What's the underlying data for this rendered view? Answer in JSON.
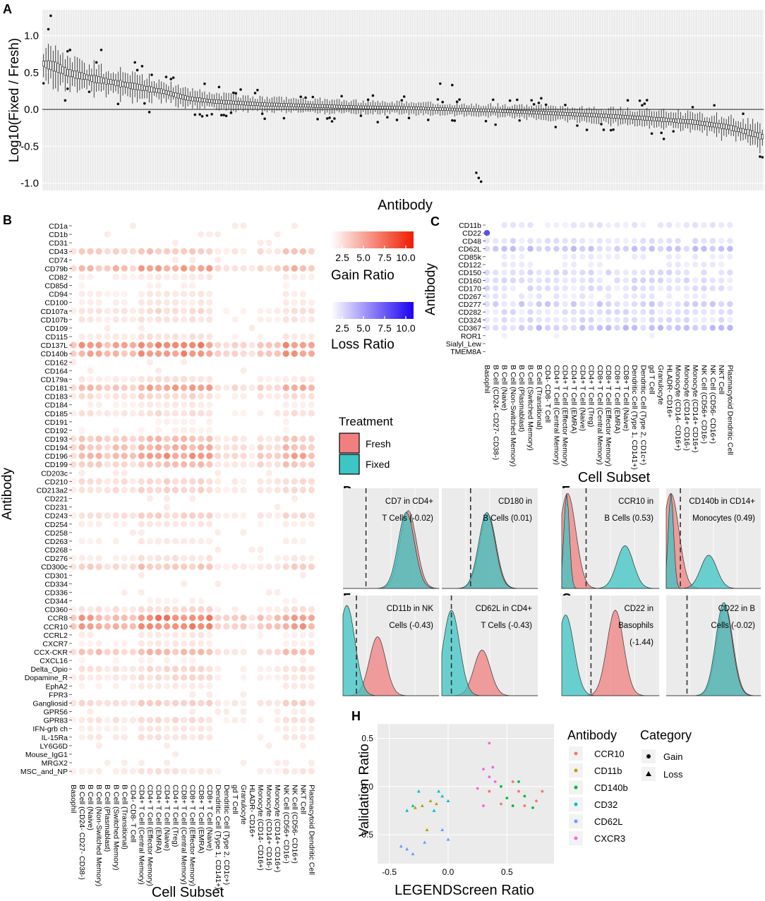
{
  "colors": {
    "panel_bg": "#ebebeb",
    "gain": "#ee5a3a",
    "loss": "#5b4ef0",
    "fresh": "#f08080",
    "fixed": "#3cc6c4",
    "ccr10": "#f8766d",
    "cd11b": "#b79f00",
    "cd140b": "#00ba38",
    "cd32": "#00bfc4",
    "cd62l": "#619cff",
    "cxcr3": "#f564e3"
  },
  "panel_labels": {
    "a": "A",
    "b": "B",
    "c": "C",
    "d": "D",
    "e": "E",
    "f": "F",
    "g": "G",
    "h": "H"
  },
  "chart_data": [
    {
      "panel": "A",
      "type": "box",
      "ylabel": "Log10(Fixed / Fresh)",
      "xlabel": "Antibody",
      "yticks": [
        "1.0",
        "0.5",
        "0.0",
        "-0.5",
        "-1.0"
      ],
      "ylim": [
        -1.1,
        1.35
      ],
      "n_boxes": 300,
      "median_trend": [
        [
          0,
          0.62
        ],
        [
          5,
          0.58
        ],
        [
          10,
          0.5
        ],
        [
          20,
          0.42
        ],
        [
          30,
          0.36
        ],
        [
          40,
          0.3
        ],
        [
          50,
          0.24
        ],
        [
          60,
          0.15
        ],
        [
          70,
          0.11
        ],
        [
          80,
          0.09
        ],
        [
          90,
          0.07
        ],
        [
          110,
          0.05
        ],
        [
          130,
          0.03
        ],
        [
          150,
          0.02
        ],
        [
          170,
          0.0
        ],
        [
          190,
          -0.02
        ],
        [
          210,
          -0.05
        ],
        [
          230,
          -0.08
        ],
        [
          250,
          -0.12
        ],
        [
          270,
          -0.17
        ],
        [
          285,
          -0.24
        ],
        [
          295,
          -0.33
        ],
        [
          299,
          -0.37
        ]
      ]
    },
    {
      "panel": "B",
      "type": "heatmap",
      "ylabel": "Antibody",
      "xlabel": "Cell Subset",
      "legend_gain_title": "Gain Ratio",
      "legend_loss_title": "Loss Ratio",
      "legend_ticks": [
        "2.5",
        "5.0",
        "7.5",
        "10.0"
      ],
      "rows": [
        "CD1a",
        "CD1b",
        "CD31",
        "CD43",
        "CD74",
        "CD79b",
        "CD82",
        "CD85d",
        "CD94",
        "CD100",
        "CD107a",
        "CD107b",
        "CD109",
        "CD115",
        "CD137L",
        "CD140b",
        "CD162",
        "CD164",
        "CD179a",
        "CD181",
        "CD183",
        "CD184",
        "CD185",
        "CD191",
        "CD192",
        "CD193",
        "CD194",
        "CD196",
        "CD199",
        "CD203c",
        "CD210",
        "CD213a2",
        "CD221",
        "CD231",
        "CD243",
        "CD254",
        "CD258",
        "CD263",
        "CD268",
        "CD276",
        "CD300c",
        "CD301",
        "CD334",
        "CD336",
        "CD344",
        "CD360",
        "CCR8",
        "CCR10",
        "CCRL2",
        "CXCR7",
        "CCX-CKR",
        "CXCL16",
        "Delta_Opio",
        "Dopamine_R",
        "EphA2",
        "FPR3",
        "Gangliosid",
        "GPR56",
        "GPR83",
        "IFN-grb ch",
        "IL-15Ra",
        "LY6G6D",
        "Mouse_IgG1",
        "MRGX2",
        "MSC_and_NP"
      ],
      "columns": [
        "Basophil",
        "B Cell (CD24- CD27- CD38-)",
        "B Cell (Naive)",
        "B Cell (Non-Switched Memory)",
        "B Cell (Plasmablast)",
        "B Cell (Switched Memory)",
        "B Cell (Transitional)",
        "CD4- CD8- T Cell",
        "CD4+ T Cell (Central Memory)",
        "CD4+ T Cell (Effector Memory)",
        "CD4+ T Cell (EMRA)",
        "CD4+ T Cell (Naive)",
        "CD4+ T Cell (Treg)",
        "CD8+ T Cell (Central Memory)",
        "CD8+ T Cell (Effector Memory)",
        "CD8+ T Cell (EMRA)",
        "CD8+ T Cell (Naive)",
        "Dendritic Cell (Type 1, CD141+)",
        "Dendritic Cell (Type 2, CD1c+)",
        "gd T Cell",
        "Granulocyte",
        "HLADR- CD16+",
        "Monocyte (CD14- CD16+)",
        "Monocyte (CD14+ CD16-)",
        "Monocyte (CD14+ CD16+)",
        "NK Cell (CD56+ CD16-)",
        "NK Cell (CD56- CD16+)",
        "NKT Cell",
        "Plasmacytoid Dendritic Cell"
      ],
      "strong_rows": {
        "CD137L": 0.85,
        "CD140b": 0.75,
        "CCR8": 0.85,
        "CCR10": 0.8,
        "CD196": 0.7,
        "CD181": 0.6,
        "CD79b": 0.6,
        "CD194": 0.55,
        "CD193": 0.45,
        "CD199": 0.45,
        "CCX-CKR": 0.5,
        "CD300c": 0.4,
        "CD43": 0.4,
        "Gangliosid": 0.35,
        "CD210": 0.3,
        "CD213a2": 0.3,
        "CD243": 0.3,
        "CD183": 0.3,
        "CD185": 0.25,
        "CD107a": 0.25,
        "CD107b": 0.2,
        "CD115": 0.2,
        "CD179a": 0.2,
        "CD360": 0.25,
        "CD276": 0.2,
        "Dopamine_R": 0.25,
        "Delta_Opio": 0.25,
        "GPR83": 0.25,
        "IL-15Ra": 0.2,
        "IFN-grb ch": 0.15,
        "CD82": 0.15,
        "CD94": 0.15,
        "CD100": 0.15,
        "CD263": 0.15,
        "CD254": 0.15,
        "EphA2": 0.15,
        "CXCR7": 0.15,
        "CCRL2": 0.15,
        "CD191": 0.1,
        "CD192": 0.1,
        "CD184": 0.15,
        "CD344": 0.1,
        "MSC_and_NP": 0.2,
        "CXCL16": 0.1,
        "CD85d": 0.1
      }
    },
    {
      "panel": "C",
      "type": "heatmap",
      "ylabel": "Antibody",
      "xlabel": "Cell Subset",
      "rows": [
        "CD11b",
        "CD22",
        "CD48",
        "CD62L",
        "CD85k",
        "CD122",
        "CD150",
        "CD160",
        "CD170",
        "CD267",
        "CD277",
        "CD282",
        "CD324",
        "CD367",
        "ROR1",
        "Sialyl_Lew",
        "TMEM8A"
      ],
      "columns": [
        "Basophil",
        "B Cell (CD24- CD27- CD38-)",
        "B Cell (Naive)",
        "B Cell (Non-Switched Memory)",
        "B Cell (Plasmablast)",
        "B Cell (Switched Memory)",
        "B Cell (Transitional)",
        "CD4- CD8- T Cell",
        "CD4+ T Cell (Central Memory)",
        "CD4+ T Cell (Effector Memory)",
        "CD4+ T Cell (EMRA)",
        "CD4+ T Cell (Naive)",
        "CD4+ T Cell (Treg)",
        "CD8+ T Cell (Central Memory)",
        "CD8+ T Cell (Effector Memory)",
        "CD8+ T Cell (EMRA)",
        "CD8+ T Cell (Naive)",
        "Dendritic Cell (Type 1, CD141+)",
        "Dendritic Cell (Type 2, CD1c+)",
        "gd T Cell",
        "Granulocyte",
        "HLADR- CD16+",
        "Monocyte (CD14- CD16+)",
        "Monocyte (CD14+ CD16-)",
        "Monocyte (CD14+ CD16+)",
        "NK Cell (CD56+ CD16-)",
        "NK Cell (CD56- CD16+)",
        "NKT Cell",
        "Plasmacytoid Dendritic Cell"
      ],
      "highlight": {
        "row": "CD22",
        "column": "Basophil",
        "value": 10.0
      }
    },
    {
      "panel": "D-G",
      "type": "density",
      "legend_title": "Treatment",
      "legend_items": [
        "Fresh",
        "Fixed"
      ],
      "subplots": [
        {
          "panel": "D",
          "line1": "CD7 in CD4+",
          "line2": "T Cells (-0.02)",
          "line3": "",
          "fresh_peak": 0.68,
          "fixed_peak": 0.66,
          "fresh_height": 0.82,
          "fixed_height": 0.8
        },
        {
          "panel": "D",
          "line1": "CD180 in",
          "line2": "B Cells (0.01)",
          "line3": "",
          "fresh_peak": 0.48,
          "fixed_peak": 0.47,
          "fresh_height": 0.78,
          "fixed_height": 0.8
        },
        {
          "panel": "E",
          "line1": "CCR10 in",
          "line2": "B Cells (0.53)",
          "line3": "",
          "fresh_peak": 0.06,
          "fixed_peak": 0.65,
          "fresh_height": 1.0,
          "fixed_height": 0.45
        },
        {
          "panel": "E",
          "line1": "CD140b in CD14+",
          "line2": "Monocytes (0.49)",
          "line3": "",
          "fresh_peak": 0.05,
          "fixed_peak": 0.45,
          "fresh_height": 1.0,
          "fixed_height": 0.35
        },
        {
          "panel": "F",
          "line1": "CD11b in NK",
          "line2": "Cells (-0.43)",
          "line3": "",
          "fresh_peak": 0.36,
          "fixed_peak": 0.04,
          "fresh_height": 0.62,
          "fixed_height": 0.95
        },
        {
          "panel": "F",
          "line1": "CD62L in CD4+",
          "line2": "T Cells (-0.43)",
          "line3": "",
          "fresh_peak": 0.42,
          "fixed_peak": 0.1,
          "fresh_height": 0.48,
          "fixed_height": 0.9
        },
        {
          "panel": "G",
          "line1": "CD22 in",
          "line2": "Basophils",
          "line3": "(-1.44)",
          "fresh_peak": 0.55,
          "fixed_peak": 0.04,
          "fresh_height": 0.9,
          "fixed_height": 0.85
        },
        {
          "panel": "G",
          "line1": "CD22 in B",
          "line2": "Cells (-0.02)",
          "line3": "",
          "fresh_peak": 0.62,
          "fixed_peak": 0.61,
          "fresh_height": 0.95,
          "fixed_height": 0.98
        }
      ]
    },
    {
      "panel": "H",
      "type": "scatter",
      "xlabel": "LEGENDScreen Ratio",
      "ylabel": "Validation Ratio",
      "xlim": [
        -0.6,
        0.9
      ],
      "ylim": [
        -0.8,
        0.65
      ],
      "xticks": [
        "-0.5",
        "0.0",
        "0.5"
      ],
      "yticks": [
        "0.5",
        "0.0",
        "-0.5"
      ],
      "legend_color_title": "Antibody",
      "legend_shape_title": "Category",
      "series": [
        {
          "name": "CCR10",
          "points": [
            [
              0.55,
              0.05,
              "gain"
            ],
            [
              0.6,
              -0.05,
              "gain"
            ],
            [
              0.65,
              -0.2,
              "gain"
            ],
            [
              0.75,
              -0.15,
              "gain"
            ],
            [
              0.8,
              -0.05,
              "gain"
            ],
            [
              0.45,
              -0.18,
              "gain"
            ],
            [
              0.35,
              -0.05,
              "gain"
            ]
          ]
        },
        {
          "name": "CD11b",
          "points": [
            [
              -0.22,
              -0.2,
              "loss"
            ],
            [
              -0.15,
              -0.15,
              "loss"
            ],
            [
              -0.1,
              -0.18,
              "loss"
            ],
            [
              -0.28,
              -0.22,
              "loss"
            ],
            [
              -0.18,
              -0.45,
              "loss"
            ]
          ]
        },
        {
          "name": "CD140b",
          "points": [
            [
              0.5,
              -0.12,
              "gain"
            ],
            [
              0.55,
              -0.2,
              "gain"
            ],
            [
              0.6,
              0.05,
              "gain"
            ],
            [
              0.65,
              -0.1,
              "gain"
            ],
            [
              0.72,
              -0.22,
              "gain"
            ],
            [
              0.45,
              0.0,
              "gain"
            ]
          ]
        },
        {
          "name": "CD32",
          "points": [
            [
              -0.3,
              -0.2,
              "loss"
            ],
            [
              -0.08,
              -0.05,
              "loss"
            ],
            [
              -0.05,
              -0.1,
              "loss"
            ],
            [
              -0.12,
              -0.25,
              "loss"
            ],
            [
              0.0,
              -0.15,
              "loss"
            ],
            [
              -0.25,
              -0.05,
              "loss"
            ],
            [
              -0.35,
              -0.25,
              "loss"
            ]
          ]
        },
        {
          "name": "CD62L",
          "points": [
            [
              -0.4,
              -0.62,
              "loss"
            ],
            [
              -0.35,
              -0.65,
              "loss"
            ],
            [
              -0.3,
              -0.7,
              "loss"
            ],
            [
              -0.05,
              -0.45,
              "loss"
            ],
            [
              0.0,
              -0.55,
              "loss"
            ],
            [
              -0.2,
              -0.58,
              "loss"
            ]
          ]
        },
        {
          "name": "CXCR3",
          "points": [
            [
              0.3,
              0.18,
              "gain"
            ],
            [
              0.35,
              0.1,
              "gain"
            ],
            [
              0.38,
              0.2,
              "gain"
            ],
            [
              0.4,
              0.05,
              "gain"
            ],
            [
              0.35,
              0.45,
              "gain"
            ],
            [
              0.3,
              -0.2,
              "gain"
            ],
            [
              0.25,
              -0.02,
              "gain"
            ]
          ]
        }
      ],
      "shape_items": [
        {
          "name": "Gain",
          "shape": "circle"
        },
        {
          "name": "Loss",
          "shape": "triangle"
        }
      ]
    }
  ]
}
